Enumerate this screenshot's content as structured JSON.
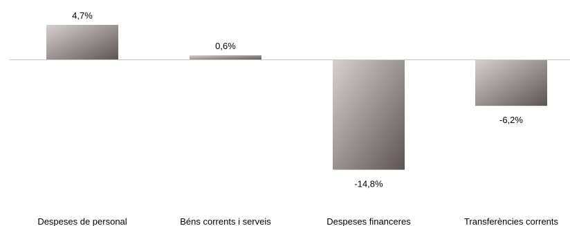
{
  "chart_data": {
    "type": "bar",
    "categories": [
      "Despeses de personal",
      "Béns corrents i serveis",
      "Despeses financeres",
      "Transferències corrents"
    ],
    "values": [
      4.7,
      0.6,
      -14.8,
      -6.2
    ],
    "value_labels": [
      "4,7%",
      "0,6%",
      "-14,8%",
      "-6,2%"
    ],
    "ylim": [
      -14.8,
      4.7
    ],
    "grid": false,
    "legend": "none",
    "colors": {
      "bar_light": "#d8d0d0",
      "bar_dark": "#5e5454",
      "baseline": "#c8c8c8",
      "text": "#000000"
    }
  }
}
